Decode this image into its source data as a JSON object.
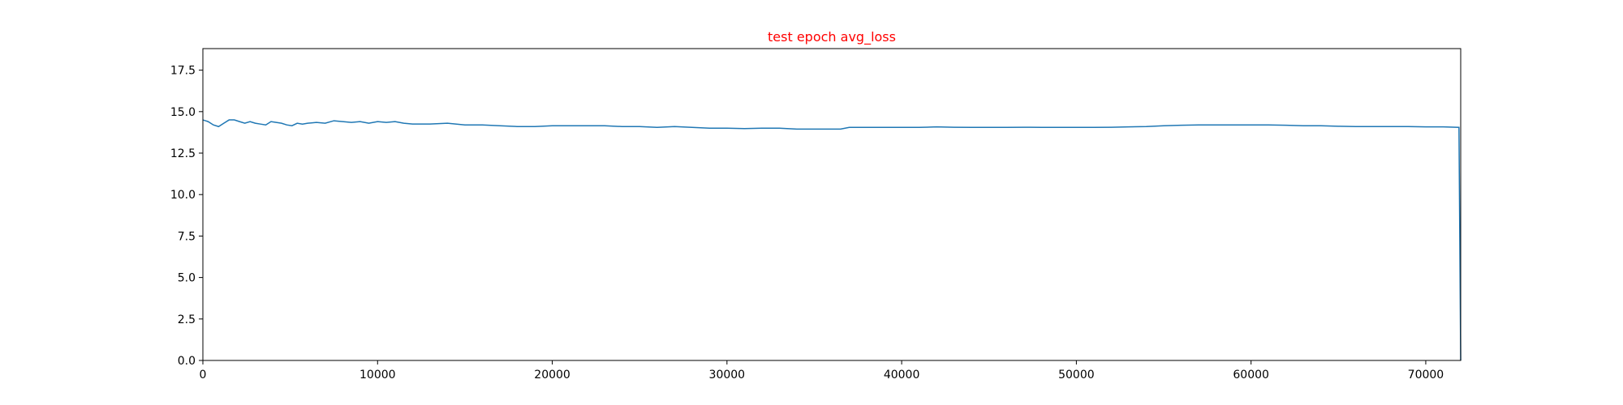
{
  "chart_data": {
    "type": "line",
    "title": "test epoch avg_loss",
    "title_color": "#ff0000",
    "line_color": "#1f77b4",
    "xlabel": "",
    "ylabel": "",
    "xlim": [
      0,
      72000
    ],
    "ylim": [
      0,
      18.8
    ],
    "grid": false,
    "x_ticks": [
      0,
      10000,
      20000,
      30000,
      40000,
      50000,
      60000,
      70000
    ],
    "x_tick_labels": [
      "0",
      "10000",
      "20000",
      "30000",
      "40000",
      "50000",
      "60000",
      "70000"
    ],
    "y_ticks": [
      0,
      2.5,
      5,
      7.5,
      10,
      12.5,
      15,
      17.5
    ],
    "y_tick_labels": [
      "0.0",
      "2.5",
      "5.0",
      "7.5",
      "10.0",
      "12.5",
      "15.0",
      "17.5"
    ],
    "series": [
      {
        "x": [
          0,
          300,
          600,
          900,
          1200,
          1500,
          1800,
          2100,
          2400,
          2700,
          3000,
          3300,
          3600,
          3900,
          4200,
          4500,
          4800,
          5100,
          5400,
          5700,
          6000,
          6500,
          7000,
          7500,
          8000,
          8500,
          9000,
          9500,
          10000,
          10500,
          11000,
          11500,
          12000,
          13000,
          14000,
          15000,
          16000,
          17000,
          18000,
          19000,
          20000,
          21000,
          22000,
          23000,
          24000,
          25000,
          26000,
          27000,
          28000,
          29000,
          30000,
          31000,
          32000,
          33000,
          34000,
          35000,
          36000,
          36500,
          37000,
          38000,
          39000,
          40000,
          41000,
          42000,
          43000,
          44000,
          45000,
          46000,
          47000,
          48000,
          49000,
          50000,
          51000,
          52000,
          53000,
          54000,
          55000,
          56000,
          57000,
          58000,
          59000,
          60000,
          61000,
          62000,
          63000,
          64000,
          65000,
          66000,
          67000,
          68000,
          69000,
          70000,
          71000,
          71900,
          72000
        ],
        "y": [
          14.5,
          14.4,
          14.2,
          14.1,
          14.3,
          14.5,
          14.5,
          14.4,
          14.3,
          14.4,
          14.3,
          14.25,
          14.2,
          14.4,
          14.35,
          14.3,
          14.2,
          14.15,
          14.3,
          14.25,
          14.3,
          14.35,
          14.3,
          14.45,
          14.4,
          14.35,
          14.4,
          14.3,
          14.4,
          14.35,
          14.4,
          14.3,
          14.25,
          14.25,
          14.3,
          14.2,
          14.2,
          14.15,
          14.1,
          14.1,
          14.15,
          14.15,
          14.15,
          14.15,
          14.1,
          14.1,
          14.05,
          14.1,
          14.05,
          14.0,
          14.0,
          13.98,
          14.0,
          14.0,
          13.95,
          13.95,
          13.95,
          13.95,
          14.05,
          14.05,
          14.05,
          14.05,
          14.05,
          14.08,
          14.06,
          14.05,
          14.05,
          14.05,
          14.06,
          14.05,
          14.05,
          14.05,
          14.05,
          14.06,
          14.08,
          14.1,
          14.15,
          14.18,
          14.2,
          14.2,
          14.2,
          14.2,
          14.2,
          14.18,
          14.15,
          14.15,
          14.12,
          14.1,
          14.1,
          14.1,
          14.1,
          14.08,
          14.08,
          14.05,
          0.0
        ]
      }
    ]
  }
}
